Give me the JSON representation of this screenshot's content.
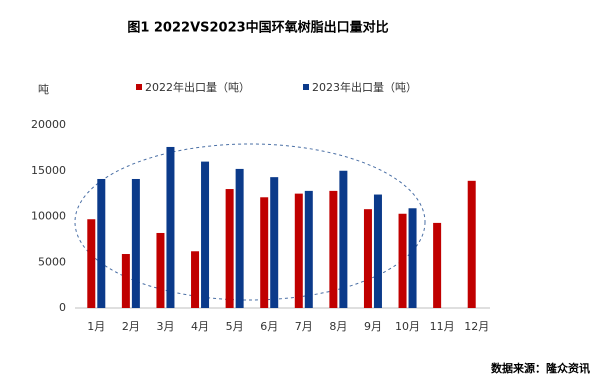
{
  "chart_data": {
    "type": "bar",
    "title": "图1  2022VS2023中国环氧树脂出口量对比",
    "y_label": "吨",
    "source": "数据来源：隆众资讯",
    "categories": [
      "1月",
      "2月",
      "3月",
      "4月",
      "5月",
      "6月",
      "7月",
      "8月",
      "9月",
      "10月",
      "11月",
      "12月"
    ],
    "series": [
      {
        "name": "2022年出口量（吨）",
        "color": "#c00000",
        "values": [
          9700,
          5900,
          8200,
          6200,
          13000,
          12100,
          12500,
          12800,
          10800,
          10300,
          9300,
          13900
        ]
      },
      {
        "name": "2023年出口量（吨）",
        "color": "#0b3a8a",
        "values": [
          14100,
          14100,
          17600,
          16000,
          15200,
          14300,
          12800,
          15000,
          12400,
          10900,
          null,
          null
        ]
      }
    ],
    "ylim": [
      0,
      20000
    ],
    "yticks": [
      0,
      5000,
      10000,
      15000,
      20000
    ],
    "grid": false
  }
}
